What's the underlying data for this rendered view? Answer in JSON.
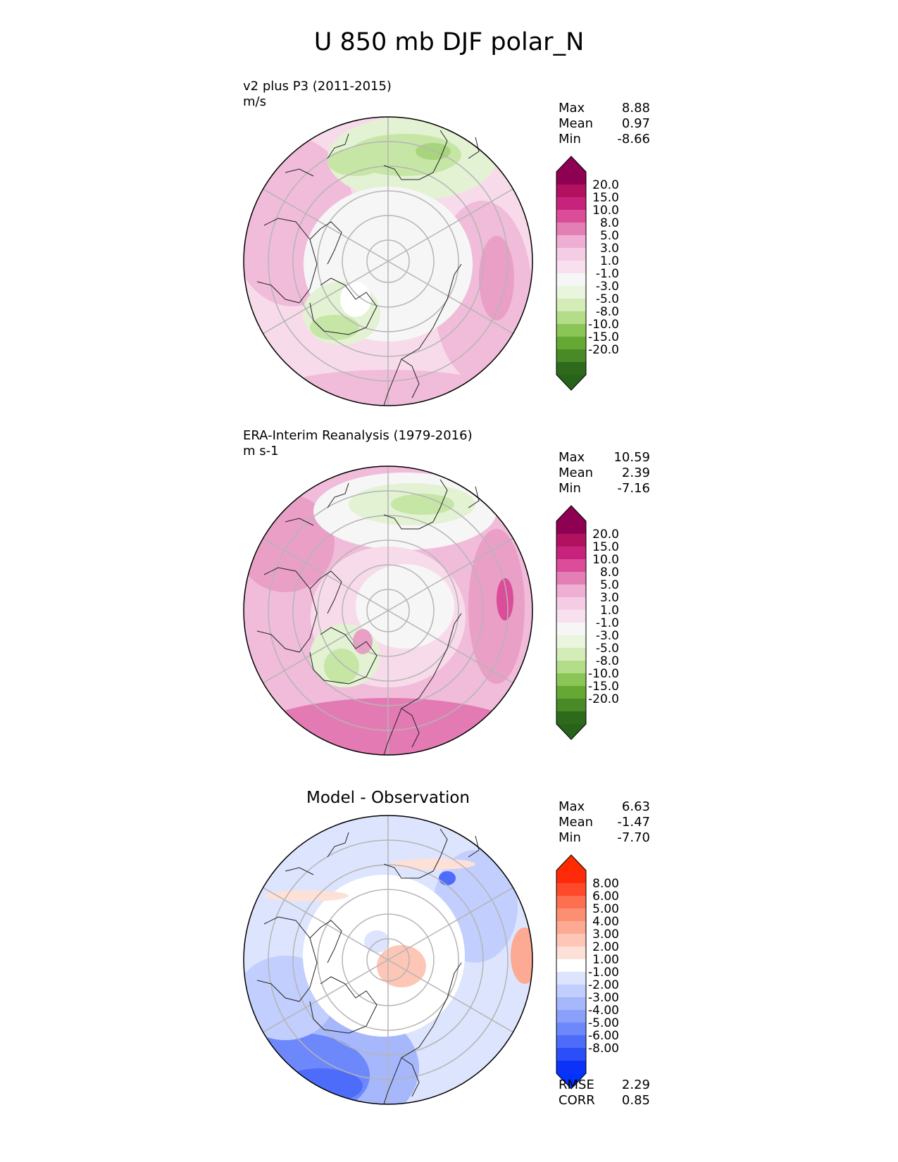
{
  "title": "U 850 mb DJF polar_N",
  "panels": [
    {
      "id": "model",
      "label_line1": "v2 plus P3 (2011-2015)",
      "label_line2": "m/s",
      "stats": {
        "max_label": "Max",
        "max": "8.88",
        "mean_label": "Mean",
        "mean": "0.97",
        "min_label": "Min",
        "min": "-8.66"
      },
      "colorbar": {
        "ticks": [
          "20.0",
          "15.0",
          "10.0",
          "8.0",
          "5.0",
          "3.0",
          "1.0",
          "-1.0",
          "-3.0",
          "-5.0",
          "-8.0",
          "-10.0",
          "-15.0",
          "-20.0"
        ],
        "colors": [
          "#8e0152",
          "#b2115f",
          "#c7237c",
          "#db4c99",
          "#e47fb5",
          "#efaed4",
          "#f4cde5",
          "#f8e0ee",
          "#f6f6f6",
          "#e9f5dc",
          "#d4ecb8",
          "#b3dd88",
          "#8bc557",
          "#66a834",
          "#4a8a26",
          "#2f6a1c"
        ],
        "min_color": "#276419",
        "max_color": "#8e0152"
      }
    },
    {
      "id": "obs",
      "label_line1": "ERA-Interim Reanalysis (1979-2016)",
      "label_line2": "m s-1",
      "stats": {
        "max_label": "Max",
        "max": "10.59",
        "mean_label": "Mean",
        "mean": "2.39",
        "min_label": "Min",
        "min": "-7.16"
      },
      "colorbar": {
        "ticks": [
          "20.0",
          "15.0",
          "10.0",
          "8.0",
          "5.0",
          "3.0",
          "1.0",
          "-1.0",
          "-3.0",
          "-5.0",
          "-8.0",
          "-10.0",
          "-15.0",
          "-20.0"
        ],
        "colors": [
          "#8e0152",
          "#b2115f",
          "#c7237c",
          "#db4c99",
          "#e47fb5",
          "#efaed4",
          "#f4cde5",
          "#f8e0ee",
          "#f6f6f6",
          "#e9f5dc",
          "#d4ecb8",
          "#b3dd88",
          "#8bc557",
          "#66a834",
          "#4a8a26",
          "#2f6a1c"
        ],
        "min_color": "#276419",
        "max_color": "#8e0152"
      }
    },
    {
      "id": "diff",
      "title": "Model - Observation",
      "stats": {
        "max_label": "Max",
        "max": "6.63",
        "mean_label": "Mean",
        "mean": "-1.47",
        "min_label": "Min",
        "min": "-7.70"
      },
      "metrics": {
        "rmse_label": "RMSE",
        "rmse": "2.29",
        "corr_label": "CORR",
        "corr": "0.85"
      },
      "colorbar": {
        "ticks": [
          "8.00",
          "6.00",
          "5.00",
          "4.00",
          "3.00",
          "2.00",
          "1.00",
          "-1.00",
          "-2.00",
          "-3.00",
          "-4.00",
          "-5.00",
          "-6.00",
          "-8.00"
        ],
        "colors": [
          "#ff2a0a",
          "#fe4a2a",
          "#fd6f4f",
          "#fc8f72",
          "#fcaa93",
          "#fdc6b7",
          "#fde0d8",
          "#ffffff",
          "#dde4fd",
          "#c2cefd",
          "#a6b7fc",
          "#8aa0fb",
          "#6d88fb",
          "#4d6cf9",
          "#2b4ef8",
          "#0b32f6"
        ],
        "min_color": "#0033ff",
        "max_color": "#ff2a00"
      }
    }
  ]
}
